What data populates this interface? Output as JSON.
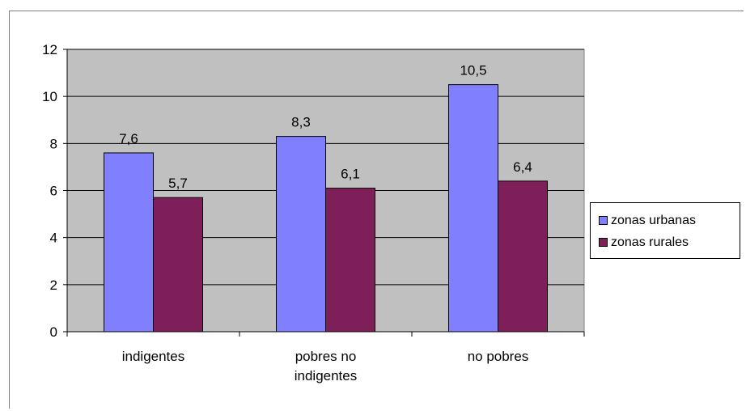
{
  "chart_data": {
    "type": "bar",
    "categories": [
      "indigentes",
      "pobres no indigentes",
      "no pobres"
    ],
    "category_lines": [
      [
        "indigentes"
      ],
      [
        "pobres no",
        "indigentes"
      ],
      [
        "no pobres"
      ]
    ],
    "series": [
      {
        "name": "zonas urbanas",
        "values": [
          7.6,
          8.3,
          10.5
        ],
        "labels": [
          "7,6",
          "8,3",
          "10,5"
        ],
        "color": "#8080ff"
      },
      {
        "name": "zonas rurales",
        "values": [
          5.7,
          6.1,
          6.4
        ],
        "labels": [
          "5,7",
          "6,1",
          "6,4"
        ],
        "color": "#7f1f5a"
      }
    ],
    "ylim": [
      0,
      12
    ],
    "yticks": [
      0,
      2,
      4,
      6,
      8,
      10,
      12
    ],
    "grid": true,
    "plot_background": "#c0c0c0",
    "legend_position": "right"
  }
}
